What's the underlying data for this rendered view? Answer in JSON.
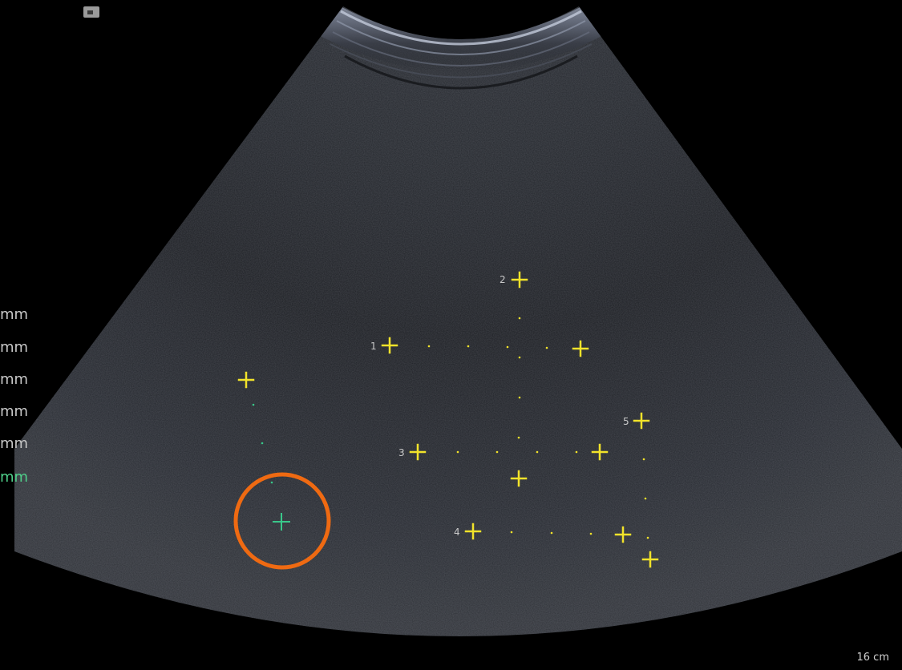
{
  "measurement_labels": [
    {
      "text": "mm",
      "active": false
    },
    {
      "text": "mm",
      "active": false
    },
    {
      "text": "mm",
      "active": false
    },
    {
      "text": "mm",
      "active": false
    },
    {
      "text": "mm",
      "active": false
    },
    {
      "text": "mm",
      "active": true
    }
  ],
  "caliper_numbers": [
    "1",
    "2",
    "3",
    "4",
    "5"
  ],
  "depth_label": "16 cm",
  "colors": {
    "background": "#000000",
    "caliper_yellow": "#f2e32a",
    "caliper_green": "#39c78a",
    "highlight_orange": "#ef6a12",
    "label_gray": "#c8c8c8"
  },
  "icons": {
    "probe_marker": "probe-orientation-icon"
  }
}
